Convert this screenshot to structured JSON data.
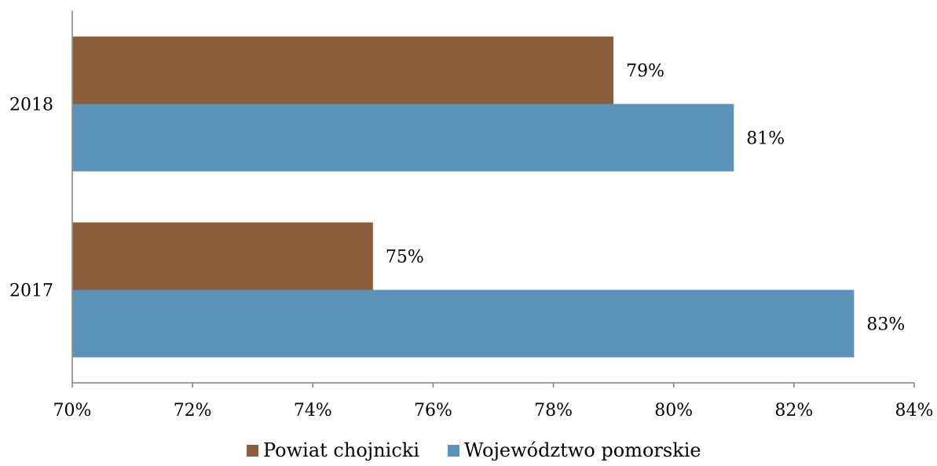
{
  "chart_data": {
    "type": "bar",
    "orientation": "horizontal",
    "categories": [
      "2018",
      "2017"
    ],
    "series": [
      {
        "name": "Powiat chojnicki",
        "values": [
          79,
          75
        ],
        "labels": [
          "79%",
          "75%"
        ],
        "color": "#8B5E3C"
      },
      {
        "name": "Województwo pomorskie",
        "values": [
          81,
          83
        ],
        "labels": [
          "81%",
          "83%"
        ],
        "color": "#5B93B8"
      }
    ],
    "xlim": [
      70,
      84
    ],
    "xticks": [
      70,
      72,
      74,
      76,
      78,
      80,
      82,
      84
    ],
    "xtick_labels": [
      "70%",
      "72%",
      "74%",
      "76%",
      "78%",
      "80%",
      "82%",
      "84%"
    ],
    "title": "",
    "xlabel": "",
    "ylabel": "",
    "grid": false,
    "legend_position": "bottom"
  }
}
